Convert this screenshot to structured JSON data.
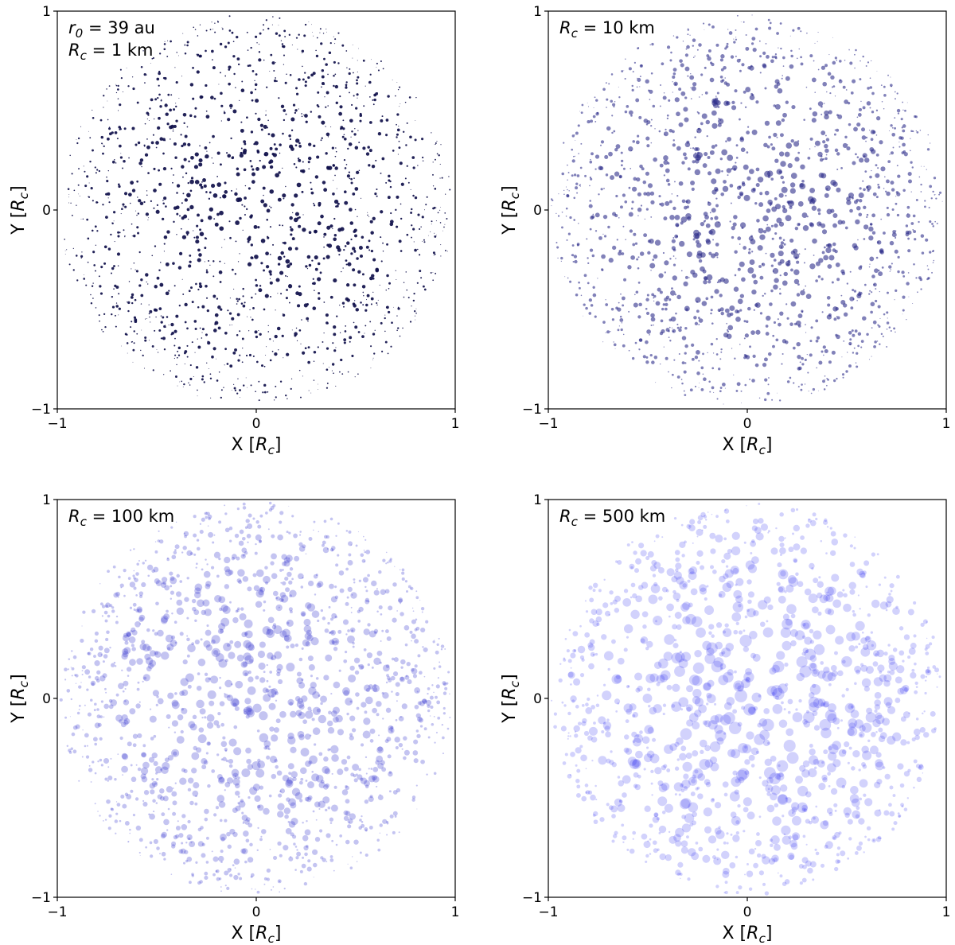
{
  "chart_data": [
    {
      "type": "scatter",
      "xlabel": "X [R_c]",
      "ylabel": "Y [R_c]",
      "xlim": [
        -1,
        1
      ],
      "ylim": [
        -1,
        1
      ],
      "xticks": [
        "−1",
        "0",
        "1"
      ],
      "yticks": [
        "−1",
        "0",
        "1"
      ],
      "annotation": [
        "r_0 = 39 au",
        "R_c = 1 km"
      ],
      "marker_color": "#0f0f4a",
      "marker_opacity": 0.92,
      "marker_scale": 0.5,
      "point_count": 1600,
      "seed": 11,
      "grid": false,
      "legend": "none"
    },
    {
      "type": "scatter",
      "xlabel": "X [R_c]",
      "ylabel": "Y [R_c]",
      "xlim": [
        -1,
        1
      ],
      "ylim": [
        -1,
        1
      ],
      "xticks": [
        "−1",
        "0",
        "1"
      ],
      "yticks": [
        "−1",
        "0",
        "1"
      ],
      "annotation": [
        "R_c = 10 km"
      ],
      "marker_color": "#2d2d8a",
      "marker_opacity": 0.6,
      "marker_scale": 0.7,
      "point_count": 1600,
      "seed": 23,
      "grid": false,
      "legend": "none"
    },
    {
      "type": "scatter",
      "xlabel": "X [R_c]",
      "ylabel": "Y [R_c]",
      "xlim": [
        -1,
        1
      ],
      "ylim": [
        -1,
        1
      ],
      "xticks": [
        "−1",
        "0",
        "1"
      ],
      "yticks": [
        "−1",
        "0",
        "1"
      ],
      "annotation": [
        "R_c = 100 km"
      ],
      "marker_color": "#3a3ad0",
      "marker_opacity": 0.3,
      "marker_scale": 1.0,
      "point_count": 1500,
      "seed": 37,
      "grid": false,
      "legend": "none"
    },
    {
      "type": "scatter",
      "xlabel": "X [R_c]",
      "ylabel": "Y [R_c]",
      "xlim": [
        -1,
        1
      ],
      "ylim": [
        -1,
        1
      ],
      "xticks": [
        "−1",
        "0",
        "1"
      ],
      "yticks": [
        "−1",
        "0",
        "1"
      ],
      "annotation": [
        "R_c = 500 km"
      ],
      "marker_color": "#3030f0",
      "marker_opacity": 0.22,
      "marker_scale": 1.35,
      "point_count": 1200,
      "seed": 53,
      "grid": false,
      "legend": "none"
    }
  ]
}
